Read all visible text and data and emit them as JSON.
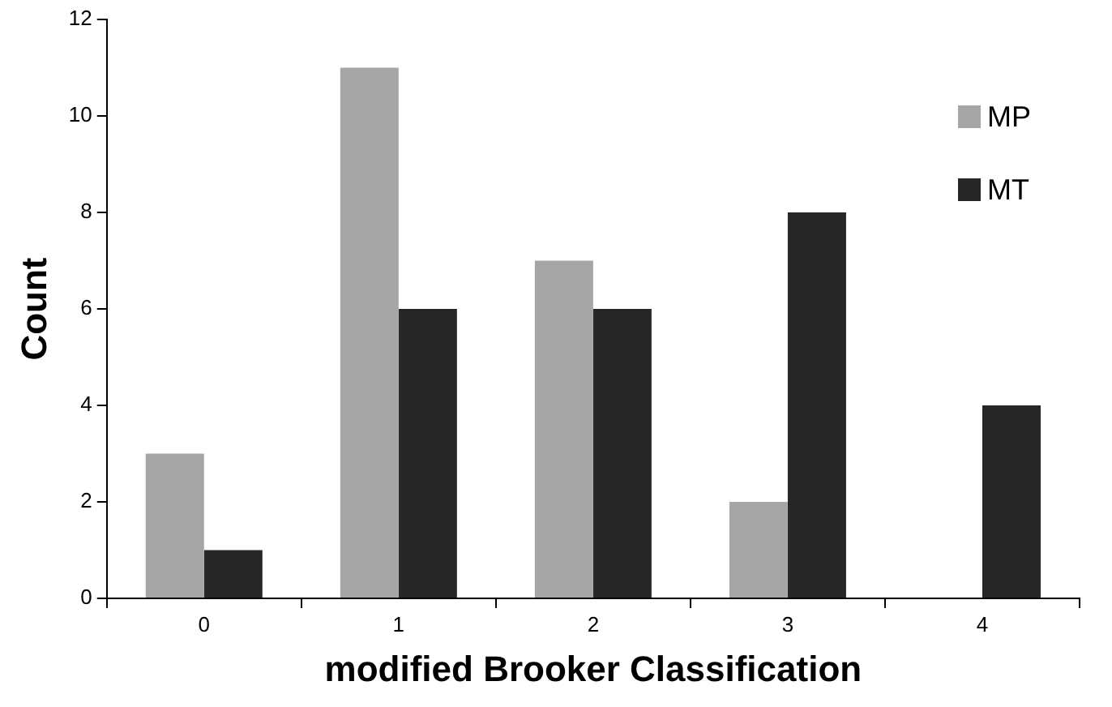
{
  "chart_data": {
    "type": "bar",
    "xlabel": "modified Brooker Classification",
    "ylabel": "Count",
    "categories": [
      "0",
      "1",
      "2",
      "3",
      "4"
    ],
    "series": [
      {
        "name": "MP",
        "color": "#a6a6a6",
        "values": [
          3,
          11,
          7,
          2,
          0
        ]
      },
      {
        "name": "MT",
        "color": "#262626",
        "values": [
          1,
          6,
          6,
          8,
          4
        ]
      }
    ],
    "ylim": [
      0,
      12
    ],
    "yticks": [
      0,
      2,
      4,
      6,
      8,
      10,
      12
    ],
    "grid": false,
    "legend": "top right"
  }
}
